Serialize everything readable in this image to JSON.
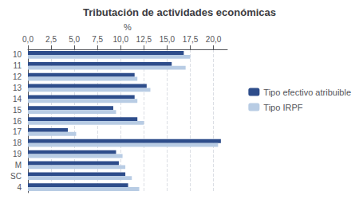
{
  "chart_data": {
    "type": "bar",
    "orientation": "horizontal",
    "title": "Tributación de actividades económicas",
    "xlabel": "%",
    "categories": [
      "10",
      "11",
      "12",
      "13",
      "14",
      "15",
      "16",
      "17",
      "18",
      "19",
      "M",
      "SC",
      "4"
    ],
    "series": [
      {
        "name": "Tipo efectivo atribuible",
        "color": "#2E4D8B",
        "values": [
          16.8,
          15.5,
          11.5,
          12.8,
          11.5,
          9.2,
          11.8,
          4.3,
          20.8,
          9.5,
          9.8,
          10.5,
          10.8
        ]
      },
      {
        "name": "Tipo IRPF",
        "color": "#B8CCE4",
        "values": [
          17.5,
          17.0,
          11.8,
          13.2,
          11.8,
          9.5,
          12.5,
          5.2,
          20.5,
          10.2,
          10.5,
          11.2,
          12.0
        ]
      }
    ],
    "xlim": [
      0,
      21.5
    ],
    "xticks": [
      {
        "value": 0.0,
        "label": "0,0"
      },
      {
        "value": 2.5,
        "label": "2,5"
      },
      {
        "value": 5.0,
        "label": "5,0"
      },
      {
        "value": 7.5,
        "label": "7,5"
      },
      {
        "value": 10.0,
        "label": "10,0"
      },
      {
        "value": 12.5,
        "label": "12,5"
      },
      {
        "value": 15.0,
        "label": "15,0"
      },
      {
        "value": 17.5,
        "label": "17,5"
      },
      {
        "value": 20.0,
        "label": "20,0"
      }
    ],
    "grid": true,
    "legend": "right"
  }
}
